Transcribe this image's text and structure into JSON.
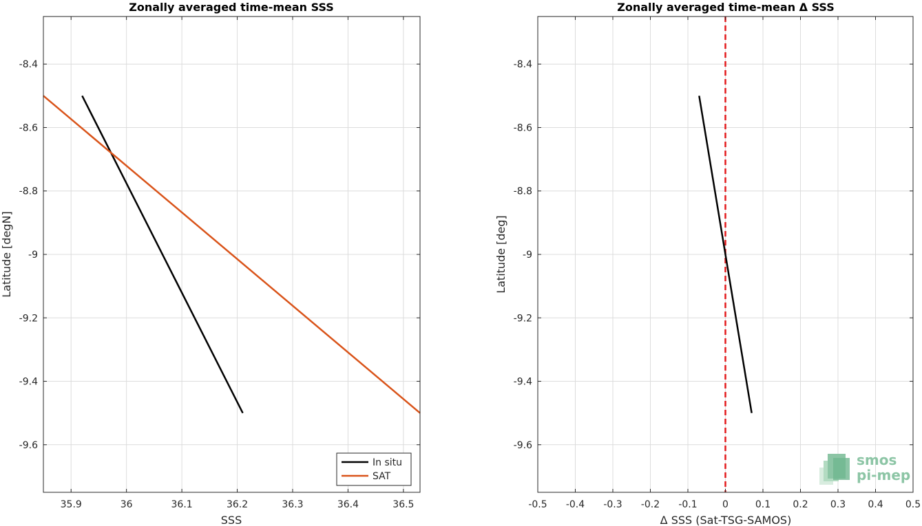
{
  "chart_data": [
    {
      "type": "line",
      "title": "Zonally averaged time-mean SSS",
      "xlabel": "SSS",
      "ylabel": "Latitude [degN]",
      "xlim": [
        35.85,
        36.53
      ],
      "ylim": [
        -9.75,
        -8.25
      ],
      "xticks": [
        35.9,
        36,
        36.1,
        36.2,
        36.3,
        36.4,
        36.5
      ],
      "xtick_labels": [
        "35.9",
        "36",
        "36.1",
        "36.2",
        "36.3",
        "36.4",
        "36.5"
      ],
      "yticks": [
        -8.4,
        -8.6,
        -8.8,
        -9,
        -9.2,
        -9.4,
        -9.6
      ],
      "ytick_labels": [
        "-8.4",
        "-8.6",
        "-8.8",
        "-9",
        "-9.2",
        "-9.4",
        "-9.6"
      ],
      "grid": true,
      "legend_position": "bottom-right",
      "series": [
        {
          "name": "In situ",
          "color": "#000000",
          "x": [
            35.92,
            36.21
          ],
          "y": [
            -8.5,
            -9.5
          ]
        },
        {
          "name": "SAT",
          "color": "#d95319",
          "x": [
            35.85,
            36.53
          ],
          "y": [
            -8.5,
            -9.5
          ]
        }
      ]
    },
    {
      "type": "line",
      "title": "Zonally averaged time-mean Δ SSS",
      "xlabel": "Δ SSS (Sat-TSG-SAMOS)",
      "ylabel": "Latitude [deg]",
      "xlim": [
        -0.5,
        0.5
      ],
      "ylim": [
        -9.75,
        -8.25
      ],
      "xticks": [
        -0.5,
        -0.4,
        -0.3,
        -0.2,
        -0.1,
        0,
        0.1,
        0.2,
        0.3,
        0.4,
        0.5
      ],
      "xtick_labels": [
        "-0.5",
        "-0.4",
        "-0.3",
        "-0.2",
        "-0.1",
        "0",
        "0.1",
        "0.2",
        "0.3",
        "0.4",
        "0.5"
      ],
      "yticks": [
        -8.4,
        -8.6,
        -8.8,
        -9,
        -9.2,
        -9.4,
        -9.6
      ],
      "ytick_labels": [
        "-8.4",
        "-8.6",
        "-8.8",
        "-9",
        "-9.2",
        "-9.4",
        "-9.6"
      ],
      "grid": true,
      "series": [
        {
          "color": "#000000",
          "x": [
            -0.07,
            0.07
          ],
          "y": [
            -8.5,
            -9.5
          ]
        }
      ],
      "reference_line": {
        "x": 0,
        "color": "#e41a1c",
        "style": "dashed"
      }
    }
  ],
  "logo": {
    "line1": "smos",
    "line2": "pi-mep",
    "color": "#8cc5a5"
  }
}
